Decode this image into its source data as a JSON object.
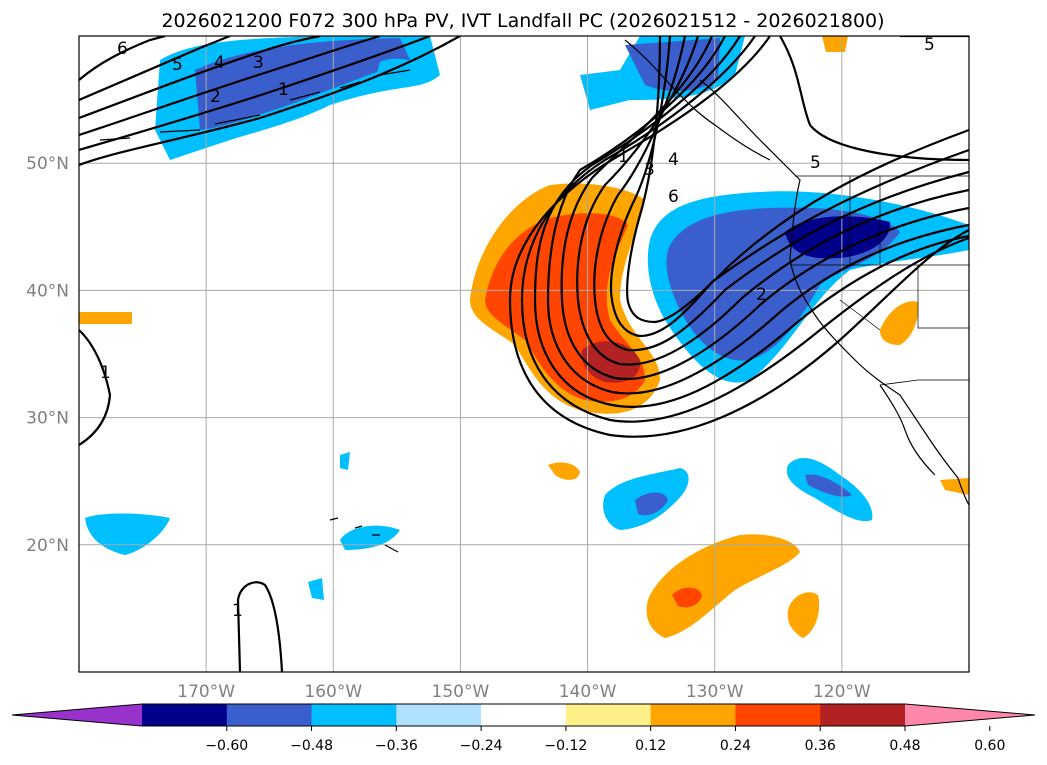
{
  "title": "2026021200 F072 300 hPa PV, IVT Landfall PC (2026021512 - 2026021800)",
  "map": {
    "lon_range": [
      -180,
      -110
    ],
    "lat_range": [
      10,
      60
    ],
    "gridlines": true,
    "lon_ticks": [
      {
        "value": -170,
        "label": "170°W"
      },
      {
        "value": -160,
        "label": "160°W"
      },
      {
        "value": -150,
        "label": "150°W"
      },
      {
        "value": -140,
        "label": "140°W"
      },
      {
        "value": -130,
        "label": "130°W"
      },
      {
        "value": -120,
        "label": "120°W"
      }
    ],
    "lat_ticks": [
      {
        "value": 20,
        "label": "20°N"
      },
      {
        "value": 30,
        "label": "30°N"
      },
      {
        "value": 40,
        "label": "40°N"
      },
      {
        "value": 50,
        "label": "50°N"
      }
    ]
  },
  "colorbar": {
    "boundaries": [
      -0.72,
      -0.6,
      -0.48,
      -0.36,
      -0.24,
      -0.12,
      0.12,
      0.24,
      0.36,
      0.48,
      0.6,
      0.72
    ],
    "colors": [
      "#9932cc",
      "#00008b",
      "#3a5fcd",
      "#00bfff",
      "#b0e2ff",
      "#ffffff",
      "#fff08a",
      "#ffa500",
      "#ff4500",
      "#b22222",
      "#ff88aa"
    ],
    "extend": "both",
    "labels": [
      "−0.60",
      "−0.48",
      "−0.36",
      "−0.24",
      "−0.12",
      "0.12",
      "0.24",
      "0.36",
      "0.48",
      "0.60"
    ]
  },
  "contour_labels": [
    "6",
    "5",
    "4",
    "3",
    "2",
    "1",
    "1",
    "3",
    "4",
    "6",
    "5",
    "2",
    "1",
    "1",
    "5"
  ]
}
